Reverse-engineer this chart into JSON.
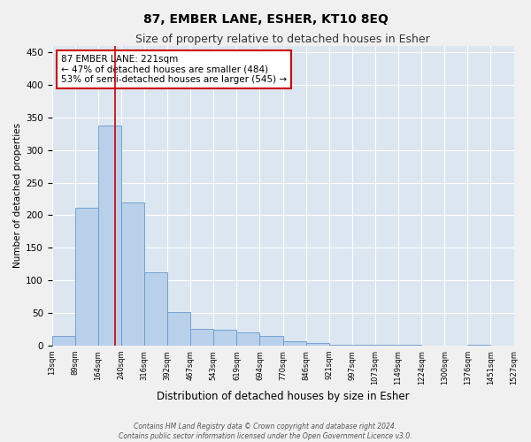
{
  "title": "87, EMBER LANE, ESHER, KT10 8EQ",
  "subtitle": "Size of property relative to detached houses in Esher",
  "xlabel": "Distribution of detached houses by size in Esher",
  "ylabel": "Number of detached properties",
  "bar_values": [
    15,
    212,
    338,
    220,
    113,
    51,
    26,
    25,
    20,
    15,
    7,
    4,
    1,
    1,
    1,
    1,
    0,
    0,
    1,
    0
  ],
  "bin_labels": [
    "13sqm",
    "89sqm",
    "164sqm",
    "240sqm",
    "316sqm",
    "392sqm",
    "467sqm",
    "543sqm",
    "619sqm",
    "694sqm",
    "770sqm",
    "846sqm",
    "921sqm",
    "997sqm",
    "1073sqm",
    "1149sqm",
    "1224sqm",
    "1300sqm",
    "1376sqm",
    "1451sqm",
    "1527sqm"
  ],
  "bar_color": "#b8d0ea",
  "bar_edge_color": "#6699cc",
  "background_color": "#dce6f0",
  "grid_color": "#ffffff",
  "property_size": 221,
  "annotation_text_line1": "87 EMBER LANE: 221sqm",
  "annotation_text_line2": "← 47% of detached houses are smaller (484)",
  "annotation_text_line3": "53% of semi-detached houses are larger (545) →",
  "red_line_color": "#cc0000",
  "annotation_box_color": "#ffffff",
  "annotation_box_edge_color": "#cc0000",
  "footer_line1": "Contains HM Land Registry data © Crown copyright and database right 2024.",
  "footer_line2": "Contains public sector information licensed under the Open Government Licence v3.0.",
  "ylim": [
    0,
    460
  ],
  "yticks": [
    0,
    50,
    100,
    150,
    200,
    250,
    300,
    350,
    400,
    450
  ],
  "fig_width": 6.0,
  "fig_height": 5.0,
  "dpi": 100
}
